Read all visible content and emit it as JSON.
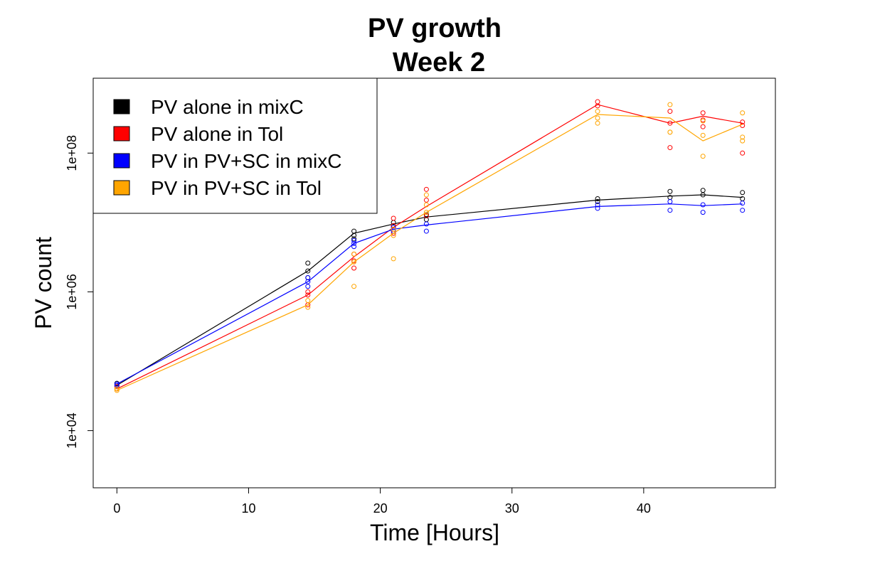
{
  "chart_data": {
    "type": "line",
    "title": "PV growth",
    "subtitle": "Week 2",
    "xlabel": "Time [Hours]",
    "ylabel": "PV count",
    "x_scale": "linear",
    "y_scale": "log",
    "xlim": [
      -1.8,
      50.0
    ],
    "ylim": [
      1500,
      1200000000
    ],
    "x_ticks": [
      0,
      10,
      20,
      30,
      40
    ],
    "y_ticks": [
      10000,
      1000000,
      100000000
    ],
    "y_tick_labels": [
      "1e+04",
      "1e+06",
      "1e+08"
    ],
    "grid": false,
    "legend_position": "top-left",
    "series": [
      {
        "name": "PV alone in mixC",
        "color": "#000000",
        "line": {
          "x": [
            0,
            14.5,
            18,
            21,
            23.5,
            36.5,
            42,
            44.5,
            47.5
          ],
          "y": [
            45000,
            2000000,
            7000000,
            9500000,
            12000000,
            21000000,
            24000000,
            25000000,
            23000000
          ]
        },
        "points": {
          "x": [
            0,
            0,
            14.5,
            14.5,
            14.5,
            18,
            18,
            18,
            21,
            21,
            23.5,
            23.5,
            36.5,
            36.5,
            42,
            42,
            44.5,
            44.5,
            47.5,
            47.5
          ],
          "y": [
            45000,
            48000,
            2600000,
            2000000,
            1600000,
            7500000,
            6500000,
            5800000,
            10000000,
            9000000,
            13000000,
            11000000,
            22000000,
            20000000,
            28000000,
            23000000,
            29000000,
            25000000,
            27000000,
            22000000
          ]
        }
      },
      {
        "name": "PV alone in Tol",
        "color": "#ff0000",
        "line": {
          "x": [
            0,
            14.5,
            18,
            21,
            23.5,
            36.5,
            42,
            44.5,
            47.5
          ],
          "y": [
            40000,
            900000,
            3200000,
            8500000,
            17000000,
            500000000,
            270000000,
            340000000,
            270000000
          ]
        },
        "points": {
          "x": [
            0,
            0,
            14.5,
            14.5,
            14.5,
            18,
            18,
            18,
            21,
            21,
            21,
            23.5,
            23.5,
            23.5,
            36.5,
            36.5,
            42,
            42,
            42,
            44.5,
            44.5,
            44.5,
            47.5,
            47.5,
            47.5
          ],
          "y": [
            40000,
            43000,
            1000000,
            900000,
            650000,
            3500000,
            2800000,
            2200000,
            11500000,
            9000000,
            7000000,
            30000000,
            21000000,
            12500000,
            550000000,
            480000000,
            400000000,
            270000000,
            120000000,
            380000000,
            300000000,
            240000000,
            280000000,
            250000000,
            100000000
          ]
        }
      },
      {
        "name": "PV in PV+SC in mixC",
        "color": "#0000ff",
        "line": {
          "x": [
            0,
            14.5,
            18,
            21,
            23.5,
            36.5,
            42,
            44.5,
            47.5
          ],
          "y": [
            47000,
            1400000,
            5000000,
            8000000,
            9200000,
            17000000,
            18500000,
            17500000,
            18500000
          ]
        },
        "points": {
          "x": [
            0,
            0,
            14.5,
            14.5,
            14.5,
            18,
            18,
            18,
            21,
            21,
            23.5,
            23.5,
            36.5,
            36.5,
            42,
            42,
            44.5,
            44.5,
            47.5,
            47.5
          ],
          "y": [
            47000,
            45000,
            1600000,
            1400000,
            1200000,
            5500000,
            5000000,
            4500000,
            8500000,
            7500000,
            9500000,
            7500000,
            18000000,
            16000000,
            20000000,
            15000000,
            18000000,
            14000000,
            19000000,
            15000000
          ]
        }
      },
      {
        "name": "PV in PV+SC in Tol",
        "color": "#ffa500",
        "line": {
          "x": [
            0,
            14.5,
            18,
            21,
            23.5,
            36.5,
            42,
            44.5,
            47.5
          ],
          "y": [
            38000,
            650000,
            2700000,
            7000000,
            14000000,
            360000000,
            320000000,
            150000000,
            260000000
          ]
        },
        "points": {
          "x": [
            0,
            0,
            14.5,
            14.5,
            18,
            18,
            18,
            21,
            21,
            21,
            23.5,
            23.5,
            23.5,
            36.5,
            36.5,
            36.5,
            42,
            42,
            42,
            44.5,
            44.5,
            44.5,
            47.5,
            47.5,
            47.5
          ],
          "y": [
            38000,
            40000,
            750000,
            600000,
            3500000,
            2700000,
            1200000,
            8000000,
            6500000,
            3000000,
            25000000,
            18000000,
            14000000,
            400000000,
            320000000,
            270000000,
            500000000,
            200000000,
            200000000,
            290000000,
            180000000,
            90000000,
            380000000,
            170000000,
            150000000
          ]
        }
      }
    ]
  }
}
